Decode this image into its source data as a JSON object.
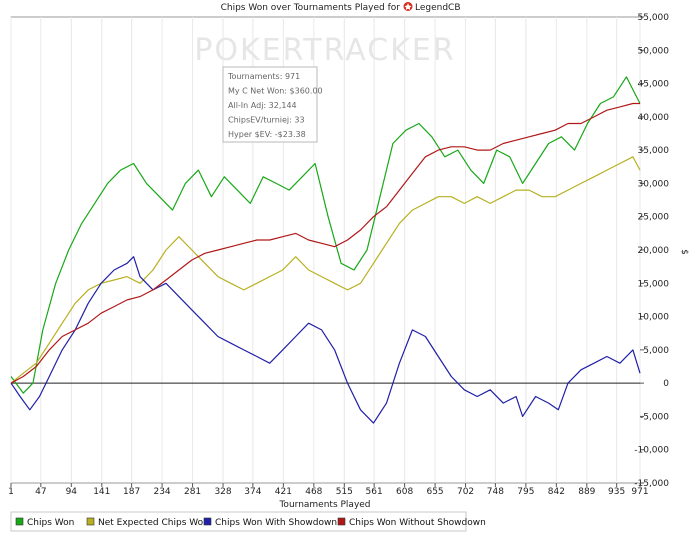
{
  "chart_data": {
    "type": "line",
    "title_prefix": "Chips Won over Tournaments Played for",
    "player": "LegendCB",
    "xlabel": "Tournaments Played",
    "ylabel": "$",
    "watermark": "POKERTRACKER",
    "xlim": [
      1,
      971
    ],
    "ylim": [
      -15000,
      55000
    ],
    "x_ticks": [
      1,
      47,
      94,
      141,
      187,
      234,
      281,
      328,
      374,
      421,
      468,
      515,
      561,
      608,
      655,
      702,
      748,
      795,
      842,
      889,
      935,
      971
    ],
    "y_ticks": [
      55000,
      50000,
      45000,
      40000,
      35000,
      30000,
      25000,
      20000,
      15000,
      10000,
      5000,
      0,
      -5000,
      -10000,
      -15000
    ],
    "y_tick_labels": [
      "55,000",
      "50,000",
      "45,000",
      "40,000",
      "35,000",
      "30,000",
      "25,000",
      "20,000",
      "15,000",
      "10,000",
      "5,000",
      "0",
      "-5,000",
      "-10,000",
      "-15,000"
    ],
    "tooltip": [
      "Tournaments: 971",
      "My C Net Won: $360.00",
      "All-In Adj: 32,144",
      "ChipsEV/turniej: 33",
      "Hyper $EV: -$23.38"
    ],
    "series": [
      {
        "name": "Chips Won",
        "color": "#18a818",
        "x": [
          1,
          20,
          35,
          50,
          70,
          90,
          110,
          130,
          150,
          170,
          190,
          210,
          230,
          250,
          270,
          290,
          310,
          330,
          350,
          370,
          390,
          410,
          430,
          450,
          470,
          490,
          510,
          530,
          550,
          570,
          590,
          610,
          630,
          650,
          670,
          690,
          710,
          730,
          750,
          770,
          790,
          810,
          830,
          850,
          870,
          890,
          910,
          930,
          950,
          971
        ],
        "values": [
          1000,
          -1500,
          0,
          8000,
          15000,
          20000,
          24000,
          27000,
          30000,
          32000,
          33000,
          30000,
          28000,
          26000,
          30000,
          32000,
          28000,
          31000,
          29000,
          27000,
          31000,
          30000,
          29000,
          31000,
          33000,
          25000,
          18000,
          17000,
          20000,
          28000,
          36000,
          38000,
          39000,
          37000,
          34000,
          35000,
          32000,
          30000,
          35000,
          34000,
          30000,
          33000,
          36000,
          37000,
          35000,
          39000,
          42000,
          43000,
          46000,
          42000
        ]
      },
      {
        "name": "Net Expected Chips Won",
        "color": "#b8b020",
        "x": [
          1,
          20,
          40,
          60,
          80,
          100,
          120,
          140,
          160,
          180,
          200,
          220,
          240,
          260,
          280,
          300,
          320,
          340,
          360,
          380,
          400,
          420,
          440,
          460,
          480,
          500,
          520,
          540,
          560,
          580,
          600,
          620,
          640,
          660,
          680,
          700,
          720,
          740,
          760,
          780,
          800,
          820,
          840,
          860,
          880,
          900,
          920,
          940,
          960,
          971
        ],
        "values": [
          0,
          1500,
          3000,
          6000,
          9000,
          12000,
          14000,
          15000,
          15500,
          16000,
          15000,
          17000,
          20000,
          22000,
          20000,
          18000,
          16000,
          15000,
          14000,
          15000,
          16000,
          17000,
          19000,
          17000,
          16000,
          15000,
          14000,
          15000,
          18000,
          21000,
          24000,
          26000,
          27000,
          28000,
          28000,
          27000,
          28000,
          27000,
          28000,
          29000,
          29000,
          28000,
          28000,
          29000,
          30000,
          31000,
          32000,
          33000,
          34000,
          32000
        ]
      },
      {
        "name": "Chips Won With Showdown",
        "color": "#2020a8",
        "x": [
          1,
          15,
          30,
          45,
          60,
          80,
          100,
          120,
          140,
          160,
          180,
          190,
          200,
          220,
          240,
          260,
          280,
          300,
          320,
          340,
          360,
          380,
          400,
          420,
          440,
          460,
          480,
          500,
          520,
          540,
          560,
          580,
          600,
          620,
          640,
          660,
          680,
          700,
          720,
          740,
          760,
          780,
          790,
          810,
          830,
          845,
          860,
          880,
          900,
          920,
          940,
          960,
          971
        ],
        "values": [
          0,
          -2000,
          -4000,
          -2000,
          1000,
          5000,
          8000,
          12000,
          15000,
          17000,
          18000,
          19000,
          16000,
          14000,
          15000,
          13000,
          11000,
          9000,
          7000,
          6000,
          5000,
          4000,
          3000,
          5000,
          7000,
          9000,
          8000,
          5000,
          0,
          -4000,
          -6000,
          -3000,
          3000,
          8000,
          7000,
          4000,
          1000,
          -1000,
          -2000,
          -1000,
          -3000,
          -2000,
          -5000,
          -2000,
          -3000,
          -4000,
          0,
          2000,
          3000,
          4000,
          3000,
          5000,
          1500
        ]
      },
      {
        "name": "Chips Won Without Showdown",
        "color": "#b01818",
        "x": [
          1,
          20,
          40,
          60,
          80,
          100,
          120,
          140,
          160,
          180,
          200,
          220,
          240,
          260,
          280,
          300,
          320,
          340,
          360,
          380,
          400,
          420,
          440,
          460,
          480,
          500,
          520,
          540,
          560,
          580,
          600,
          620,
          640,
          660,
          680,
          700,
          720,
          740,
          760,
          780,
          800,
          820,
          840,
          860,
          880,
          900,
          920,
          940,
          960,
          971
        ],
        "values": [
          0,
          1000,
          2500,
          5000,
          7000,
          8000,
          9000,
          10500,
          11500,
          12500,
          13000,
          14000,
          15500,
          17000,
          18500,
          19500,
          20000,
          20500,
          21000,
          21500,
          21500,
          22000,
          22500,
          21500,
          21000,
          20500,
          21500,
          23000,
          25000,
          26500,
          29000,
          31500,
          34000,
          35000,
          35500,
          35500,
          35000,
          35000,
          36000,
          36500,
          37000,
          37500,
          38000,
          39000,
          39000,
          40000,
          41000,
          41500,
          42000,
          42000
        ]
      }
    ]
  }
}
